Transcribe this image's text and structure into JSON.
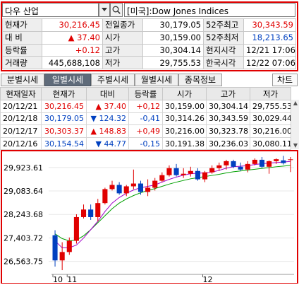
{
  "search": {
    "stock_name": "다우 산업",
    "index_name": "[미국]:Dow Jones Indices"
  },
  "quote": {
    "rows": [
      [
        {
          "label": "현재가"
        },
        {
          "value": "30,216.45",
          "color": "red"
        },
        {
          "label": "전일종가"
        },
        {
          "value": "30,179.05"
        },
        {
          "label": "52주최고"
        },
        {
          "value": "30,343.59",
          "color": "red"
        }
      ],
      [
        {
          "label": "대  비"
        },
        {
          "value": "▲  37.40",
          "color": "red"
        },
        {
          "label": "시가"
        },
        {
          "value": "30,159.00"
        },
        {
          "label": "52주최저"
        },
        {
          "value": "18,213.65",
          "color": "blue"
        }
      ],
      [
        {
          "label": "등락률"
        },
        {
          "value": "+0.12",
          "color": "red"
        },
        {
          "label": "고가"
        },
        {
          "value": "30,304.14"
        },
        {
          "label": "현지시각"
        },
        {
          "value": "12/21 17:06"
        }
      ],
      [
        {
          "label": "거래량"
        },
        {
          "value": "445,688,108"
        },
        {
          "label": "저가"
        },
        {
          "value": "29,755.53"
        },
        {
          "label": "한국시각"
        },
        {
          "value": "12/22 07:06"
        }
      ]
    ]
  },
  "tabs": [
    {
      "label": "분별시세",
      "active": false
    },
    {
      "label": "일별시세",
      "active": true
    },
    {
      "label": "주별시세",
      "active": false
    },
    {
      "label": "월별시세",
      "active": false
    },
    {
      "label": "종목정보",
      "active": false
    }
  ],
  "chart_button": "차트",
  "daily": {
    "headers": [
      "현재일자",
      "현재가",
      "대비",
      "등락률",
      "시가",
      "고가",
      "저가"
    ],
    "rows": [
      {
        "date": "20/12/21",
        "close": "30,216.45",
        "change": "▲  37.40",
        "pct": "+0,12",
        "open": "30,159.00",
        "high": "30,304.14",
        "low": "29,755.53",
        "dir": "up"
      },
      {
        "date": "20/12/18",
        "close": "30,179.05",
        "change": "▼ 124.32",
        "pct": "-0,41",
        "open": "30,314.26",
        "high": "30,343.59",
        "low": "30,029.44",
        "dir": "down"
      },
      {
        "date": "20/12/17",
        "close": "30,303.37",
        "change": "▲ 148.83",
        "pct": "+0,49",
        "open": "30,216.00",
        "high": "30,323.78",
        "low": "30,216.00",
        "dir": "up"
      },
      {
        "date": "20/12/16",
        "close": "30,154.54",
        "change": "▼  44.77",
        "pct": "-0,15",
        "open": "30,191.38",
        "high": "30,236.03",
        "low": "30,080.11",
        "dir": "down"
      }
    ]
  },
  "colors": {
    "up": "#e00000",
    "down": "#0040c0",
    "ma_short": "#a000c8",
    "ma_long": "#00a000"
  },
  "chart_data": {
    "type": "candlestick",
    "y_ticks": [
      "29,923.61",
      "29,083.64",
      "28,243.68",
      "27,403.72",
      "26,563.75"
    ],
    "y_tick_values": [
      29923.61,
      29083.64,
      28243.68,
      27403.72,
      26563.75
    ],
    "x_labels": [
      {
        "label": "10",
        "index": 0
      },
      {
        "label": "11",
        "index": 2
      },
      {
        "label": "12",
        "index": 21
      }
    ],
    "ylim": [
      26150,
      30350
    ],
    "candles": [
      {
        "o": 27500,
        "h": 27680,
        "l": 26380,
        "c": 26600
      },
      {
        "o": 26600,
        "h": 27250,
        "l": 26250,
        "c": 26900
      },
      {
        "o": 26900,
        "h": 27420,
        "l": 26800,
        "c": 27300
      },
      {
        "o": 27300,
        "h": 28250,
        "l": 27200,
        "c": 28150
      },
      {
        "o": 28150,
        "h": 28600,
        "l": 28100,
        "c": 28420
      },
      {
        "o": 28420,
        "h": 28600,
        "l": 28050,
        "c": 28150
      },
      {
        "o": 28150,
        "h": 28800,
        "l": 28000,
        "c": 28650
      },
      {
        "o": 28650,
        "h": 29200,
        "l": 28600,
        "c": 29150
      },
      {
        "o": 29150,
        "h": 29450,
        "l": 29100,
        "c": 29300
      },
      {
        "o": 29300,
        "h": 29400,
        "l": 28950,
        "c": 29000
      },
      {
        "o": 29000,
        "h": 29300,
        "l": 28900,
        "c": 29250
      },
      {
        "o": 29250,
        "h": 29850,
        "l": 29150,
        "c": 29350
      },
      {
        "o": 29350,
        "h": 29450,
        "l": 28950,
        "c": 29050
      },
      {
        "o": 29050,
        "h": 29500,
        "l": 28900,
        "c": 29200
      },
      {
        "o": 29200,
        "h": 29550,
        "l": 29100,
        "c": 29450
      },
      {
        "o": 29450,
        "h": 29750,
        "l": 29400,
        "c": 29650
      },
      {
        "o": 29650,
        "h": 30000,
        "l": 29600,
        "c": 29900
      },
      {
        "o": 29900,
        "h": 30050,
        "l": 29600,
        "c": 29650
      },
      {
        "o": 29650,
        "h": 29900,
        "l": 29550,
        "c": 29700
      },
      {
        "o": 29700,
        "h": 29950,
        "l": 29600,
        "c": 29800
      },
      {
        "o": 29800,
        "h": 29900,
        "l": 29450,
        "c": 29500
      },
      {
        "o": 29500,
        "h": 29800,
        "l": 29400,
        "c": 29750
      },
      {
        "o": 29750,
        "h": 30000,
        "l": 29700,
        "c": 29900
      },
      {
        "o": 29900,
        "h": 30100,
        "l": 29800,
        "c": 30000
      },
      {
        "o": 30000,
        "h": 30200,
        "l": 29850,
        "c": 30150
      },
      {
        "o": 30150,
        "h": 30200,
        "l": 29900,
        "c": 29950
      },
      {
        "o": 29950,
        "h": 30100,
        "l": 29800,
        "c": 29850
      },
      {
        "o": 29850,
        "h": 30150,
        "l": 29750,
        "c": 30050
      },
      {
        "o": 30050,
        "h": 30250,
        "l": 30000,
        "c": 30200
      },
      {
        "o": 30200,
        "h": 30300,
        "l": 29900,
        "c": 29950
      },
      {
        "o": 29950,
        "h": 30180,
        "l": 29700,
        "c": 30150
      },
      {
        "o": 30150,
        "h": 30250,
        "l": 30050,
        "c": 30220
      },
      {
        "o": 30180,
        "h": 30340,
        "l": 30030,
        "c": 30080
      },
      {
        "o": 30200,
        "h": 30300,
        "l": 29760,
        "c": 30216
      }
    ],
    "ma_short": [
      27300,
      27050,
      27050,
      27150,
      27400,
      27700,
      28000,
      28350,
      28650,
      28850,
      29000,
      29120,
      29200,
      29250,
      29300,
      29400,
      29500,
      29580,
      29650,
      29700,
      29720,
      29730,
      29760,
      29820,
      29900,
      29950,
      29970,
      29990,
      30030,
      30060,
      30080,
      30100,
      30120,
      30140
    ],
    "ma_long": [
      27550,
      27380,
      27300,
      27330,
      27480,
      27700,
      27950,
      28200,
      28450,
      28650,
      28800,
      28920,
      29020,
      29100,
      29170,
      29250,
      29330,
      29400,
      29460,
      29520,
      29560,
      29600,
      29640,
      29680,
      29730,
      29770,
      29800,
      29830,
      29860,
      29890,
      29920,
      29950,
      29975,
      30000
    ]
  }
}
